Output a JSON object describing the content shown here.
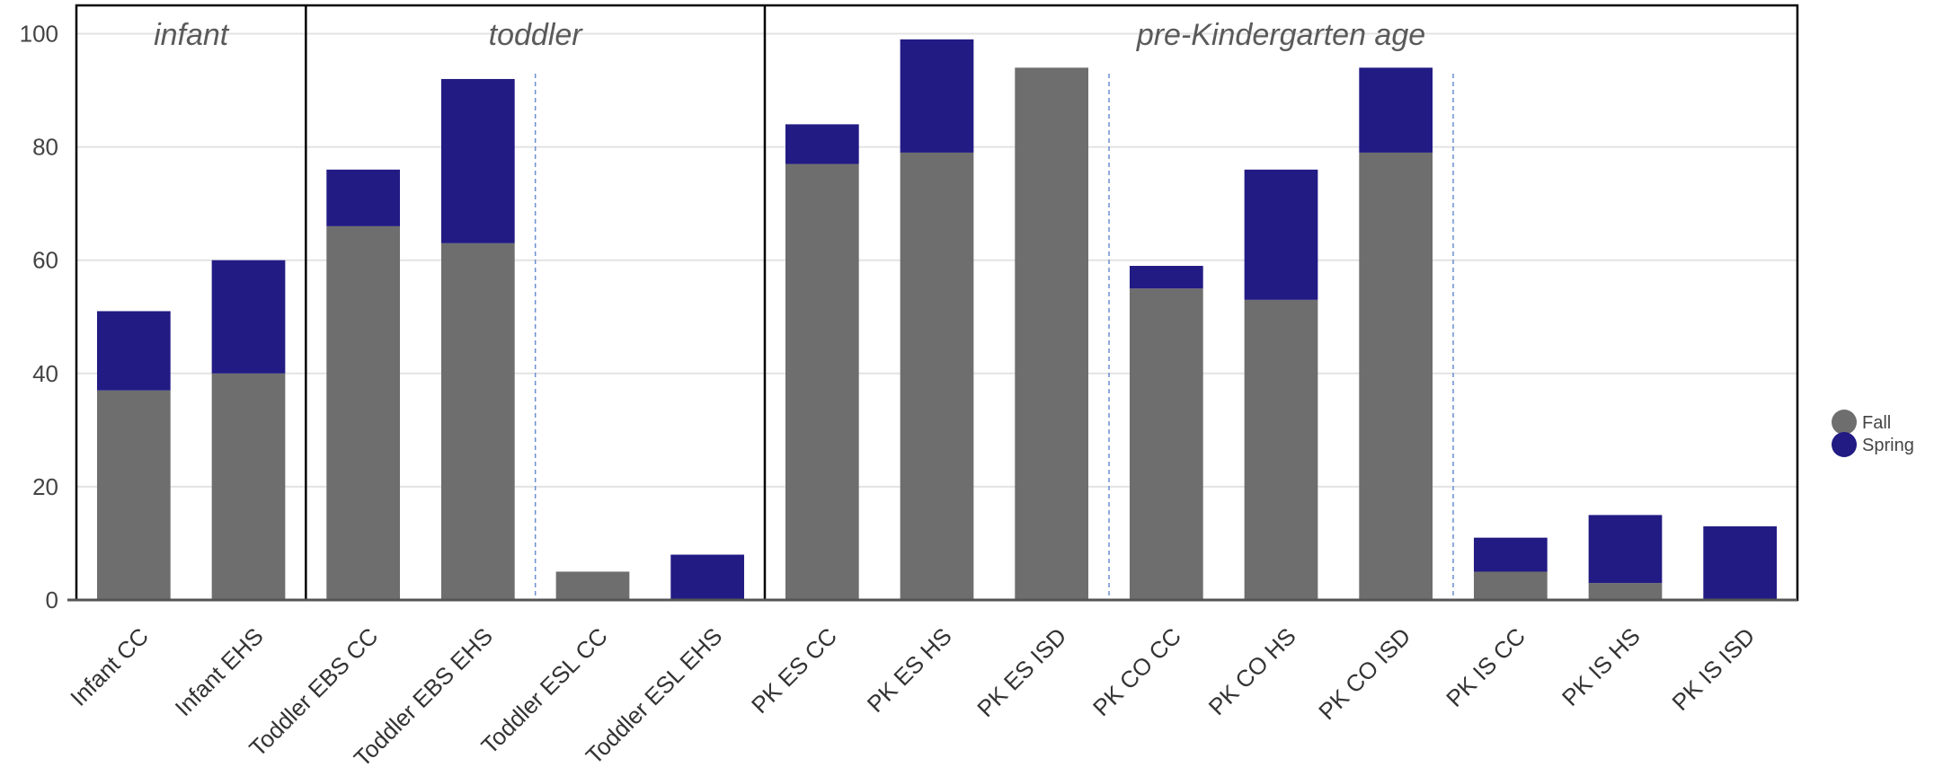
{
  "chart_data": {
    "type": "bar",
    "stacked": true,
    "categories": [
      "Infant CC",
      "Infant EHS",
      "Toddler EBS CC",
      "Toddler EBS EHS",
      "Toddler ESL CC",
      "Toddler ESL EHS",
      "PK ES CC",
      "PK ES HS",
      "PK ES ISD",
      "PK CO CC",
      "PK CO HS",
      "PK CO ISD",
      "PK IS CC",
      "PK IS HS",
      "PK IS ISD"
    ],
    "series": [
      {
        "name": "Fall",
        "color": "#6e6e6e",
        "values": [
          37,
          40,
          66,
          63,
          5,
          0,
          77,
          79,
          94,
          55,
          53,
          79,
          5,
          3,
          0
        ]
      },
      {
        "name": "Spring",
        "color": "#221b84",
        "values": [
          14,
          20,
          10,
          29,
          0,
          8,
          7,
          20,
          0,
          4,
          23,
          15,
          6,
          12,
          13
        ]
      }
    ],
    "ylim": [
      0,
      100
    ],
    "yticks": [
      0,
      20,
      40,
      60,
      80,
      100
    ],
    "grid": true,
    "legend_position": "right",
    "groups": [
      {
        "label": "infant",
        "categories": 2
      },
      {
        "label": "toddler",
        "categories": 4
      },
      {
        "label": "pre-Kindergarten age",
        "categories": 9
      }
    ],
    "subgroup_dividers_after": [
      3,
      8,
      11
    ]
  }
}
